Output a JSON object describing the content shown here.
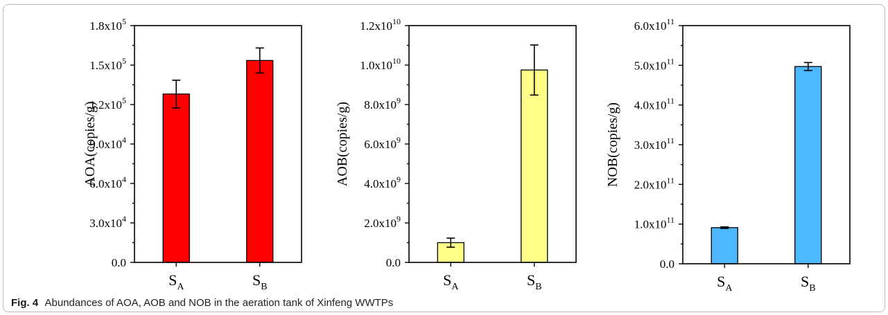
{
  "chart_data": [
    {
      "type": "bar",
      "ylabel": "AOA(copies/g)",
      "categories": [
        "S_A",
        "S_B"
      ],
      "values": [
        128000,
        153500
      ],
      "errors": [
        10500,
        9500
      ],
      "ylim": [
        0,
        180000
      ],
      "ytick_values": [
        0,
        30000,
        60000,
        90000,
        120000,
        150000,
        180000
      ],
      "yticks": [
        {
          "mant": "0.0",
          "exp": ""
        },
        {
          "mant": "3.0x10",
          "exp": "4"
        },
        {
          "mant": "6.0x10",
          "exp": "4"
        },
        {
          "mant": "9.0x10",
          "exp": "4"
        },
        {
          "mant": "1.2x10",
          "exp": "5"
        },
        {
          "mant": "1.5x10",
          "exp": "5"
        },
        {
          "mant": "1.8x10",
          "exp": "5"
        }
      ],
      "color": "#ff0000"
    },
    {
      "type": "bar",
      "ylabel": "AOB(copies/g)",
      "categories": [
        "S_A",
        "S_B"
      ],
      "values": [
        1000000000,
        9750000000
      ],
      "errors": [
        230000000,
        1270000000
      ],
      "ylim": [
        0,
        12000000000
      ],
      "ytick_values": [
        0,
        2000000000,
        4000000000,
        6000000000,
        8000000000,
        10000000000,
        12000000000
      ],
      "yticks": [
        {
          "mant": "0.0",
          "exp": ""
        },
        {
          "mant": "2.0x10",
          "exp": "9"
        },
        {
          "mant": "4.0x10",
          "exp": "9"
        },
        {
          "mant": "6.0x10",
          "exp": "9"
        },
        {
          "mant": "8.0x10",
          "exp": "9"
        },
        {
          "mant": "1.0x10",
          "exp": "10"
        },
        {
          "mant": "1.2x10",
          "exp": "10"
        }
      ],
      "color": "#ffff88"
    },
    {
      "type": "bar",
      "ylabel": "NOB(copies/g)",
      "categories": [
        "S_A",
        "S_B"
      ],
      "values": [
        91000000000,
        497000000000
      ],
      "errors": [
        2000000000,
        10000000000
      ],
      "ylim": [
        0,
        600000000000
      ],
      "ytick_values": [
        0,
        100000000000,
        200000000000,
        300000000000,
        400000000000,
        500000000000,
        600000000000
      ],
      "yticks": [
        {
          "mant": "0.0",
          "exp": ""
        },
        {
          "mant": "1.0x10",
          "exp": "11"
        },
        {
          "mant": "2.0x10",
          "exp": "11"
        },
        {
          "mant": "3.0x10",
          "exp": "11"
        },
        {
          "mant": "4.0x10",
          "exp": "11"
        },
        {
          "mant": "5.0x10",
          "exp": "11"
        },
        {
          "mant": "6.0x10",
          "exp": "11"
        }
      ],
      "color": "#4db8ff"
    }
  ],
  "caption": {
    "label": "Fig. 4",
    "text": "Abundances of AOA, AOB and NOB in the aeration tank of Xinfeng WWTPs"
  }
}
